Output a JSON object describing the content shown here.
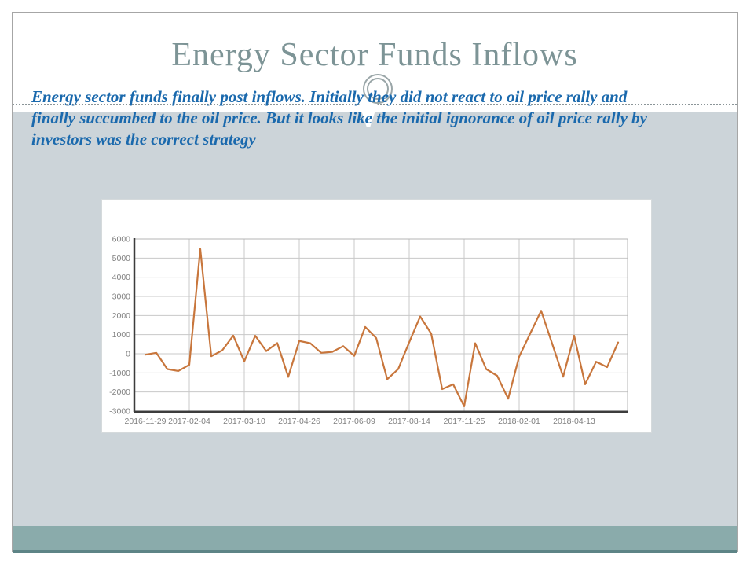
{
  "slide": {
    "title": "Energy Sector Funds Inflows",
    "subtitle_lines": [
      "Energy sector funds finally post inflows. Initially they did not react to oil price rally and",
      "finally succumbed to the oil price. But it looks like the initial ignorance of oil price rally by",
      "investors was the correct strategy"
    ]
  },
  "colors": {
    "title_text": "#7d9496",
    "subtitle_text": "#1a69ad",
    "lower_background": "#ccd4d9",
    "footer_band": "#8aabab",
    "footer_band_edge": "#5d8486",
    "frame_border": "#a6a6a6",
    "line": "#c8763c",
    "grid": "#c8c8c8",
    "axis": "#3c3c3c",
    "spine_light": "#b4b4b4",
    "tick_label": "#808080"
  },
  "chart_data": {
    "type": "line",
    "title": "",
    "xlabel": "",
    "ylabel": "",
    "legend": "none",
    "grid": true,
    "ylim": [
      -3000,
      6000
    ],
    "y_ticks": [
      6000,
      5000,
      4000,
      3000,
      2000,
      1000,
      0,
      -1000,
      -2000,
      -3000
    ],
    "x_tick_labels": [
      "2016-11-29",
      "2017-02-04",
      "2017-03-10",
      "2017-04-26",
      "2017-06-09",
      "2017-08-14",
      "2017-11-25",
      "2018-02-01",
      "2018-04-13"
    ],
    "x_tick_indices": [
      0,
      4,
      9,
      14,
      19,
      24,
      29,
      34,
      39
    ],
    "x_gridline_indices": [
      4,
      9,
      14,
      19,
      24,
      29,
      34,
      39
    ],
    "values": [
      -50,
      50,
      -800,
      -900,
      -580,
      5480,
      -130,
      180,
      950,
      -400,
      940,
      140,
      560,
      -1210,
      670,
      550,
      50,
      100,
      400,
      -110,
      1400,
      820,
      -1330,
      -800,
      600,
      1950,
      1050,
      -1850,
      -1600,
      -2750,
      550,
      -800,
      -1150,
      -2350,
      -150,
      1050,
      2250,
      530,
      -1200,
      950,
      -1600,
      -420,
      -700,
      590
    ]
  }
}
